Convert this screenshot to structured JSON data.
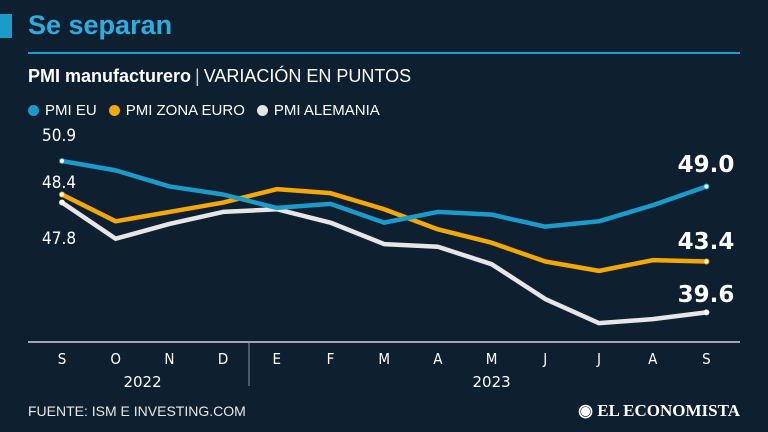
{
  "header": {
    "title": "Se separan",
    "subtitle_bold": "PMI manufacturero",
    "subtitle_sep": "|",
    "subtitle_rest": "VARIACIÓN EN PUNTOS"
  },
  "chart_data": {
    "type": "line",
    "title": "PMI manufacturero",
    "subtitle": "VARIACIÓN EN PUNTOS",
    "categories": [
      "S",
      "O",
      "N",
      "D",
      "E",
      "F",
      "M",
      "A",
      "M",
      "J",
      "J",
      "A",
      "S"
    ],
    "year_labels": [
      {
        "label": "2022",
        "from": 0,
        "to": 3
      },
      {
        "label": "2023",
        "from": 4,
        "to": 12
      }
    ],
    "ylim": [
      37,
      52.5
    ],
    "grid": false,
    "legend": "top-left",
    "series": [
      {
        "name": "PMI EU",
        "color": "#1a9bc9",
        "values": [
          50.9,
          50.2,
          49.0,
          48.4,
          47.4,
          47.7,
          46.3,
          47.1,
          46.9,
          46.0,
          46.4,
          47.6,
          49.0
        ],
        "start_label": "50.9",
        "end_label": "49.0"
      },
      {
        "name": "PMI ZONA EURO",
        "color": "#f5a800",
        "values": [
          48.4,
          46.4,
          47.1,
          47.8,
          48.8,
          48.5,
          47.3,
          45.8,
          44.8,
          43.4,
          42.7,
          43.5,
          43.4
        ],
        "start_label": "48.4",
        "end_label": "43.4"
      },
      {
        "name": "PMI ALEMANIA",
        "color": "#e6e6e6",
        "values": [
          47.8,
          45.1,
          46.2,
          47.1,
          47.3,
          46.3,
          44.7,
          44.5,
          43.2,
          40.6,
          38.8,
          39.1,
          39.6
        ],
        "start_label": "47.8",
        "end_label": "39.6"
      }
    ]
  },
  "footer": {
    "source": "FUENTE: ISM E INVESTING.COM",
    "logo": "EL ECONOMISTA"
  }
}
